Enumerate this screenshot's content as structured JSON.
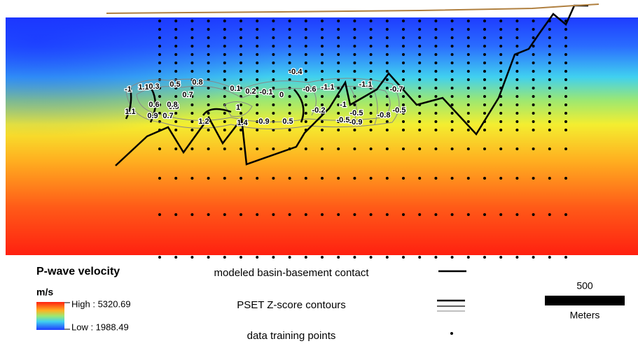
{
  "legend": {
    "title": "P-wave velocity",
    "unit": "m/s",
    "high": "High : 5320.69",
    "low": "Low : 1988.49"
  },
  "key": {
    "contact": "modeled basin-basement contact",
    "contours": "PSET Z-score contours",
    "points": "data training points"
  },
  "scale_bar": {
    "distance": "500",
    "unit": "Meters"
  },
  "contour_labels": [
    "1.1",
    "-1",
    "1.1",
    "0.3",
    "0.5",
    "0.8",
    "0.6",
    "0.7",
    "0.9",
    "0.8",
    "0.7",
    "1.2",
    "0.8",
    "1.4",
    "1",
    "0.9",
    "0.5",
    "-0.4",
    "0.1",
    "0.2",
    "-0.1",
    "0",
    "-0.2",
    "-0.6",
    "-0.5",
    "-1.1",
    "-1.1",
    "-1",
    "-0.5",
    "-0.9",
    "-0.8",
    "-0.7",
    "-0.5"
  ]
}
